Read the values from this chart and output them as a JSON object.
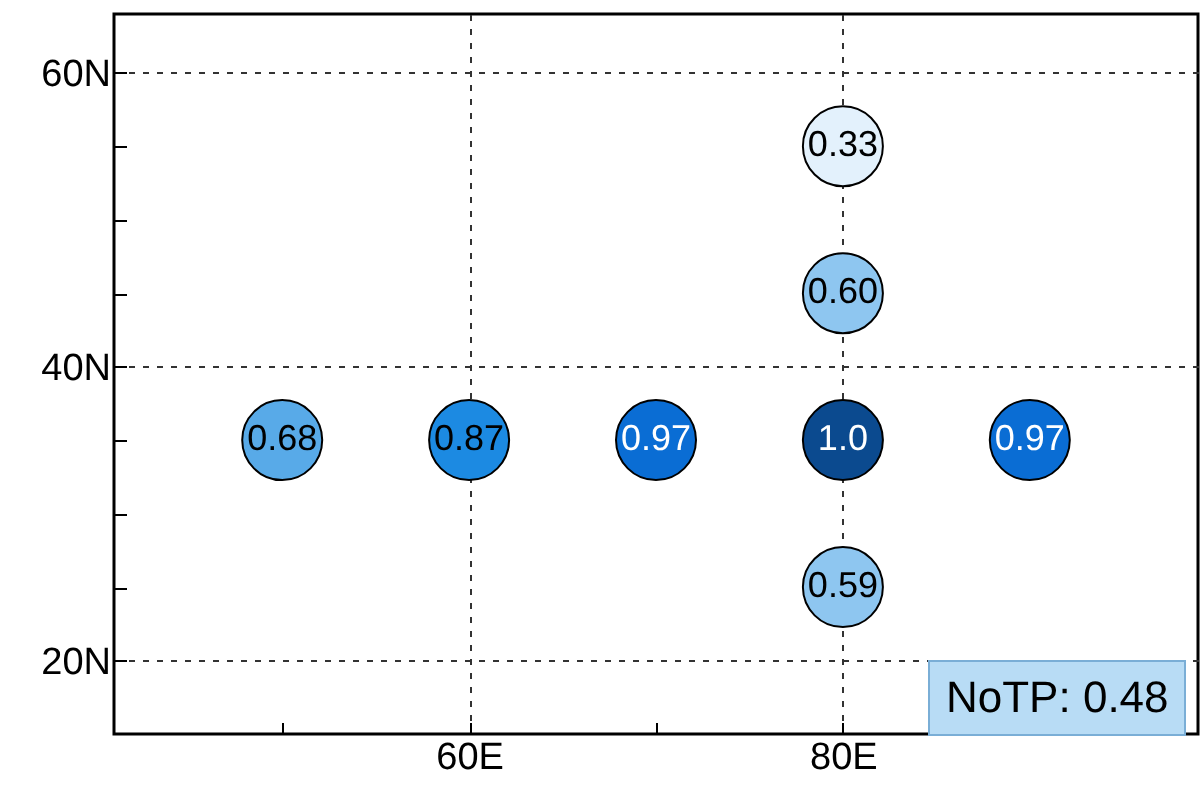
{
  "chart_data": {
    "type": "scatter",
    "grid": true,
    "marker": "circle",
    "x": [
      80,
      80,
      50,
      60,
      70,
      80,
      90,
      80
    ],
    "values": [
      55,
      45,
      35,
      35,
      35,
      35,
      35,
      25
    ],
    "colors": [
      "#e3f1fc",
      "#8ec6f0",
      "#58aae8",
      "#1c8ae2",
      "#0a6dd4",
      "#0b4a8f",
      "#0a6dd4",
      "#8ec6f0"
    ],
    "xlim": [
      41,
      99
    ],
    "xticks": [
      {
        "value": 50,
        "label": null
      },
      {
        "value": 60,
        "label": "60E"
      },
      {
        "value": 70,
        "label": null
      },
      {
        "value": 80,
        "label": "80E"
      },
      {
        "value": 90,
        "label": null
      }
    ],
    "ylim": [
      15,
      64
    ],
    "yticks": [
      {
        "value": 20,
        "label": "20N"
      },
      {
        "value": 25,
        "label": null
      },
      {
        "value": 30,
        "label": null
      },
      {
        "value": 35,
        "label": null
      },
      {
        "value": 40,
        "label": "40N"
      },
      {
        "value": 45,
        "label": null
      },
      {
        "value": 50,
        "label": null
      },
      {
        "value": 55,
        "label": null
      },
      {
        "value": 60,
        "label": "60N"
      }
    ],
    "annotations": [
      {
        "text": "0.33",
        "x": 80,
        "y": 55
      },
      {
        "text": "0.60",
        "x": 80,
        "y": 45
      },
      {
        "text": "0.68",
        "x": 50,
        "y": 35
      },
      {
        "text": "0.87",
        "x": 60,
        "y": 35
      },
      {
        "text": "0.97",
        "x": 70,
        "y": 35
      },
      {
        "text": "1.0",
        "x": 80,
        "y": 35
      },
      {
        "text": "0.97",
        "x": 90,
        "y": 35
      },
      {
        "text": "0.59",
        "x": 80,
        "y": 25
      },
      "NoTP: 0.48"
    ]
  }
}
